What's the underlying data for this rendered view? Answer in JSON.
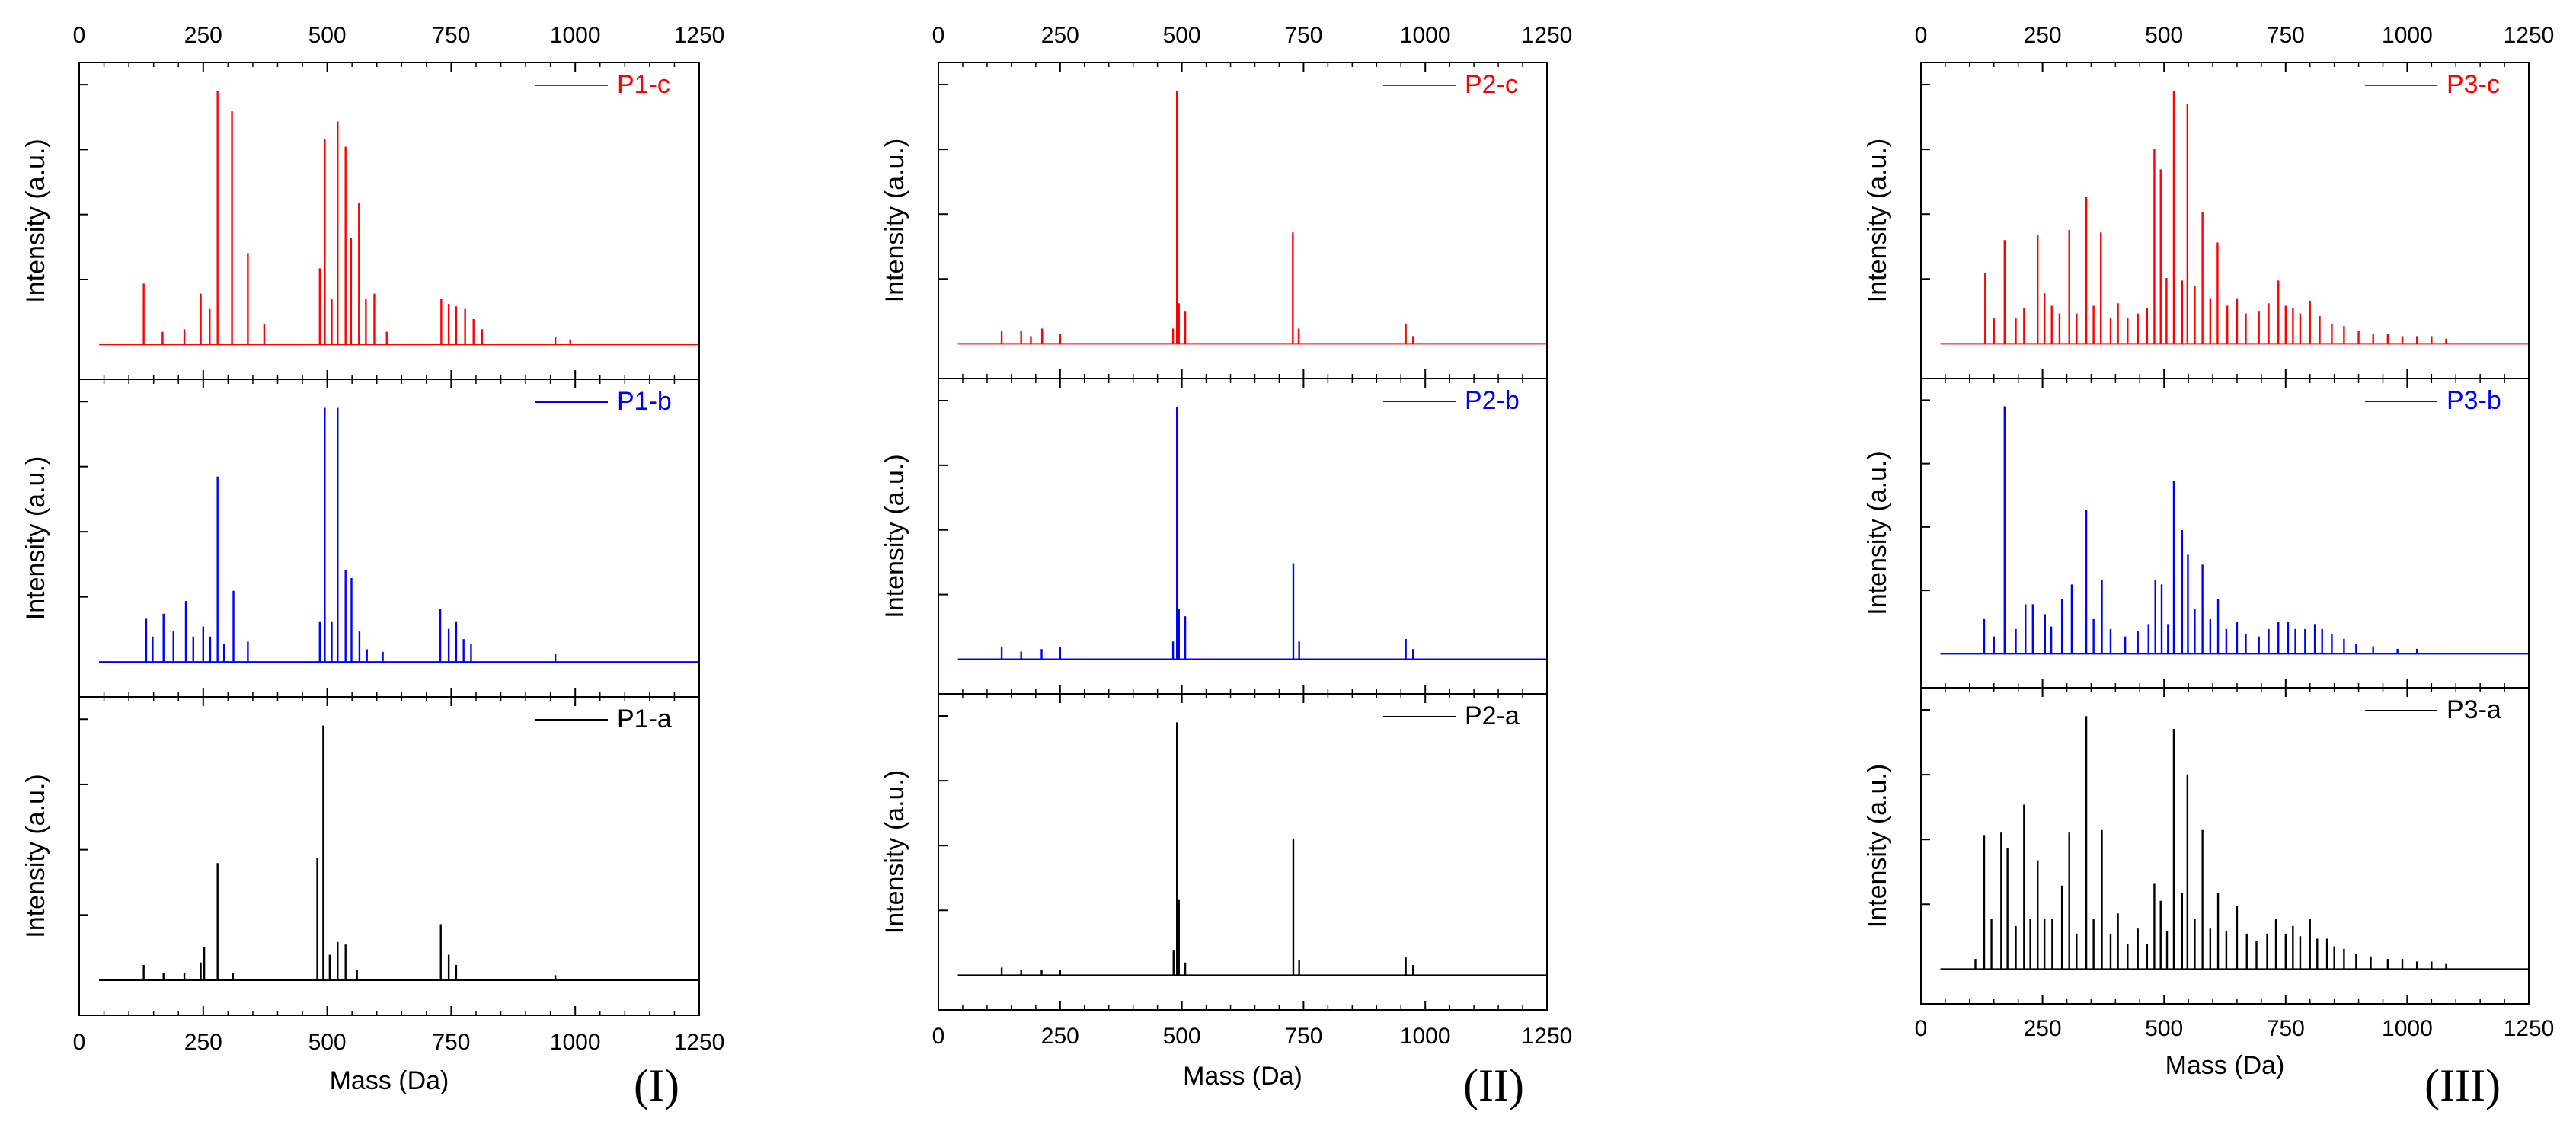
{
  "figure": {
    "x_tick_labels": [
      "0",
      "250",
      "500",
      "750",
      "1000",
      "1250"
    ],
    "x_label": "Mass (Da)",
    "y_label": "Intensity (a.u.)"
  },
  "chart_data": [
    {
      "type": "line",
      "title": "",
      "group_label": "(I)",
      "xlabel": "Mass (Da)",
      "ylabel": "Intensity (a.u.)",
      "xlim": [
        0,
        1250
      ],
      "ylim": [
        0,
        1
      ],
      "grid": false,
      "legend_position": "top-right",
      "series": [
        {
          "name": "P1-c",
          "color": "#ff0000",
          "peaks": [
            [
              130,
              0.24
            ],
            [
              168,
              0.05
            ],
            [
              212,
              0.06
            ],
            [
              245,
              0.2
            ],
            [
              263,
              0.14
            ],
            [
              279,
              1.0
            ],
            [
              308,
              0.92
            ],
            [
              340,
              0.36
            ],
            [
              373,
              0.08
            ],
            [
              485,
              0.3
            ],
            [
              495,
              0.81
            ],
            [
              509,
              0.18
            ],
            [
              521,
              0.88
            ],
            [
              537,
              0.78
            ],
            [
              548,
              0.42
            ],
            [
              564,
              0.56
            ],
            [
              578,
              0.18
            ],
            [
              595,
              0.2
            ],
            [
              620,
              0.05
            ],
            [
              730,
              0.18
            ],
            [
              745,
              0.16
            ],
            [
              760,
              0.15
            ],
            [
              778,
              0.14
            ],
            [
              795,
              0.1
            ],
            [
              812,
              0.06
            ],
            [
              960,
              0.03
            ],
            [
              990,
              0.02
            ]
          ]
        },
        {
          "name": "P1-b",
          "color": "#0000ff",
          "peaks": [
            [
              135,
              0.17
            ],
            [
              148,
              0.1
            ],
            [
              170,
              0.19
            ],
            [
              190,
              0.12
            ],
            [
              215,
              0.24
            ],
            [
              230,
              0.1
            ],
            [
              250,
              0.14
            ],
            [
              264,
              0.1
            ],
            [
              279,
              0.73
            ],
            [
              292,
              0.07
            ],
            [
              311,
              0.28
            ],
            [
              340,
              0.08
            ],
            [
              485,
              0.16
            ],
            [
              495,
              1.0
            ],
            [
              509,
              0.16
            ],
            [
              521,
              1.0
            ],
            [
              537,
              0.36
            ],
            [
              549,
              0.33
            ],
            [
              565,
              0.12
            ],
            [
              580,
              0.05
            ],
            [
              612,
              0.04
            ],
            [
              728,
              0.21
            ],
            [
              745,
              0.13
            ],
            [
              760,
              0.16
            ],
            [
              775,
              0.09
            ],
            [
              790,
              0.07
            ],
            [
              960,
              0.03
            ]
          ]
        },
        {
          "name": "P1-a",
          "color": "#000000",
          "peaks": [
            [
              130,
              0.06
            ],
            [
              170,
              0.03
            ],
            [
              212,
              0.03
            ],
            [
              245,
              0.07
            ],
            [
              252,
              0.13
            ],
            [
              279,
              0.46
            ],
            [
              310,
              0.03
            ],
            [
              480,
              0.48
            ],
            [
              492,
              1.0
            ],
            [
              505,
              0.1
            ],
            [
              521,
              0.15
            ],
            [
              537,
              0.14
            ],
            [
              560,
              0.04
            ],
            [
              729,
              0.22
            ],
            [
              745,
              0.1
            ],
            [
              760,
              0.06
            ],
            [
              960,
              0.02
            ]
          ]
        }
      ]
    },
    {
      "type": "line",
      "title": "",
      "group_label": "(II)",
      "xlabel": "Mass (Da)",
      "ylabel": "Intensity (a.u.)",
      "xlim": [
        0,
        1250
      ],
      "ylim": [
        0,
        1
      ],
      "grid": false,
      "legend_position": "top-right",
      "series": [
        {
          "name": "P2-c",
          "color": "#ff0000",
          "peaks": [
            [
              130,
              0.05
            ],
            [
              170,
              0.05
            ],
            [
              190,
              0.03
            ],
            [
              213,
              0.06
            ],
            [
              250,
              0.04
            ],
            [
              482,
              0.06
            ],
            [
              490,
              1.0
            ],
            [
              494,
              0.16
            ],
            [
              507,
              0.13
            ],
            [
              728,
              0.44
            ],
            [
              740,
              0.06
            ],
            [
              960,
              0.08
            ],
            [
              975,
              0.03
            ]
          ]
        },
        {
          "name": "P2-b",
          "color": "#0000ff",
          "peaks": [
            [
              130,
              0.05
            ],
            [
              170,
              0.03
            ],
            [
              212,
              0.04
            ],
            [
              250,
              0.05
            ],
            [
              482,
              0.07
            ],
            [
              490,
              1.0
            ],
            [
              494,
              0.2
            ],
            [
              507,
              0.17
            ],
            [
              729,
              0.38
            ],
            [
              741,
              0.07
            ],
            [
              960,
              0.08
            ],
            [
              975,
              0.04
            ]
          ]
        },
        {
          "name": "P2-a",
          "color": "#000000",
          "peaks": [
            [
              130,
              0.03
            ],
            [
              170,
              0.02
            ],
            [
              212,
              0.02
            ],
            [
              250,
              0.02
            ],
            [
              483,
              0.1
            ],
            [
              490,
              1.0
            ],
            [
              494,
              0.3
            ],
            [
              507,
              0.05
            ],
            [
              729,
              0.54
            ],
            [
              741,
              0.06
            ],
            [
              960,
              0.07
            ],
            [
              975,
              0.04
            ]
          ]
        }
      ]
    },
    {
      "type": "line",
      "title": "",
      "group_label": "(III)",
      "xlabel": "Mass (Da)",
      "ylabel": "Intensity (a.u.)",
      "xlim": [
        0,
        1250
      ],
      "ylim": [
        0,
        1
      ],
      "grid": false,
      "legend_position": "top-right",
      "series": [
        {
          "name": "P3-c",
          "color": "#ff0000",
          "peaks": [
            [
              132,
              0.28
            ],
            [
              150,
              0.1
            ],
            [
              172,
              0.41
            ],
            [
              195,
              0.1
            ],
            [
              212,
              0.14
            ],
            [
              240,
              0.43
            ],
            [
              254,
              0.2
            ],
            [
              269,
              0.15
            ],
            [
              285,
              0.12
            ],
            [
              305,
              0.45
            ],
            [
              320,
              0.12
            ],
            [
              340,
              0.58
            ],
            [
              355,
              0.15
            ],
            [
              370,
              0.44
            ],
            [
              390,
              0.1
            ],
            [
              405,
              0.16
            ],
            [
              425,
              0.1
            ],
            [
              446,
              0.12
            ],
            [
              465,
              0.14
            ],
            [
              480,
              0.77
            ],
            [
              493,
              0.69
            ],
            [
              505,
              0.26
            ],
            [
              520,
              1.0
            ],
            [
              537,
              0.25
            ],
            [
              548,
              0.95
            ],
            [
              563,
              0.23
            ],
            [
              579,
              0.52
            ],
            [
              595,
              0.18
            ],
            [
              610,
              0.4
            ],
            [
              630,
              0.15
            ],
            [
              650,
              0.18
            ],
            [
              668,
              0.12
            ],
            [
              695,
              0.13
            ],
            [
              715,
              0.16
            ],
            [
              735,
              0.25
            ],
            [
              750,
              0.15
            ],
            [
              765,
              0.14
            ],
            [
              780,
              0.12
            ],
            [
              800,
              0.17
            ],
            [
              820,
              0.11
            ],
            [
              845,
              0.08
            ],
            [
              870,
              0.07
            ],
            [
              900,
              0.05
            ],
            [
              930,
              0.04
            ],
            [
              960,
              0.04
            ],
            [
              990,
              0.03
            ],
            [
              1020,
              0.03
            ],
            [
              1050,
              0.03
            ],
            [
              1080,
              0.02
            ]
          ]
        },
        {
          "name": "P3-b",
          "color": "#0000ff",
          "peaks": [
            [
              130,
              0.14
            ],
            [
              150,
              0.07
            ],
            [
              172,
              1.0
            ],
            [
              195,
              0.1
            ],
            [
              215,
              0.2
            ],
            [
              230,
              0.2
            ],
            [
              255,
              0.16
            ],
            [
              268,
              0.11
            ],
            [
              290,
              0.22
            ],
            [
              310,
              0.28
            ],
            [
              340,
              0.58
            ],
            [
              355,
              0.14
            ],
            [
              372,
              0.3
            ],
            [
              390,
              0.1
            ],
            [
              420,
              0.07
            ],
            [
              446,
              0.09
            ],
            [
              468,
              0.12
            ],
            [
              482,
              0.3
            ],
            [
              495,
              0.28
            ],
            [
              508,
              0.12
            ],
            [
              520,
              0.7
            ],
            [
              537,
              0.5
            ],
            [
              549,
              0.4
            ],
            [
              563,
              0.18
            ],
            [
              579,
              0.36
            ],
            [
              595,
              0.14
            ],
            [
              611,
              0.22
            ],
            [
              628,
              0.1
            ],
            [
              650,
              0.13
            ],
            [
              668,
              0.08
            ],
            [
              695,
              0.07
            ],
            [
              715,
              0.1
            ],
            [
              735,
              0.13
            ],
            [
              755,
              0.13
            ],
            [
              770,
              0.1
            ],
            [
              790,
              0.1
            ],
            [
              810,
              0.12
            ],
            [
              825,
              0.1
            ],
            [
              845,
              0.08
            ],
            [
              870,
              0.06
            ],
            [
              895,
              0.04
            ],
            [
              930,
              0.03
            ],
            [
              980,
              0.02
            ],
            [
              1020,
              0.02
            ]
          ]
        },
        {
          "name": "P3-a",
          "color": "#000000",
          "peaks": [
            [
              112,
              0.04
            ],
            [
              130,
              0.53
            ],
            [
              145,
              0.2
            ],
            [
              165,
              0.54
            ],
            [
              178,
              0.48
            ],
            [
              195,
              0.17
            ],
            [
              212,
              0.65
            ],
            [
              225,
              0.2
            ],
            [
              240,
              0.43
            ],
            [
              254,
              0.2
            ],
            [
              270,
              0.2
            ],
            [
              290,
              0.33
            ],
            [
              305,
              0.54
            ],
            [
              320,
              0.14
            ],
            [
              340,
              1.0
            ],
            [
              355,
              0.2
            ],
            [
              372,
              0.55
            ],
            [
              390,
              0.14
            ],
            [
              405,
              0.22
            ],
            [
              425,
              0.1
            ],
            [
              446,
              0.16
            ],
            [
              465,
              0.1
            ],
            [
              480,
              0.34
            ],
            [
              493,
              0.27
            ],
            [
              506,
              0.15
            ],
            [
              520,
              0.95
            ],
            [
              537,
              0.3
            ],
            [
              548,
              0.77
            ],
            [
              563,
              0.2
            ],
            [
              579,
              0.55
            ],
            [
              595,
              0.16
            ],
            [
              611,
              0.3
            ],
            [
              628,
              0.15
            ],
            [
              650,
              0.25
            ],
            [
              670,
              0.14
            ],
            [
              690,
              0.11
            ],
            [
              712,
              0.14
            ],
            [
              730,
              0.2
            ],
            [
              750,
              0.14
            ],
            [
              765,
              0.17
            ],
            [
              780,
              0.13
            ],
            [
              800,
              0.2
            ],
            [
              815,
              0.12
            ],
            [
              835,
              0.12
            ],
            [
              850,
              0.09
            ],
            [
              870,
              0.08
            ],
            [
              895,
              0.06
            ],
            [
              925,
              0.05
            ],
            [
              960,
              0.04
            ],
            [
              990,
              0.04
            ],
            [
              1020,
              0.03
            ],
            [
              1050,
              0.03
            ],
            [
              1080,
              0.02
            ]
          ]
        }
      ]
    }
  ]
}
